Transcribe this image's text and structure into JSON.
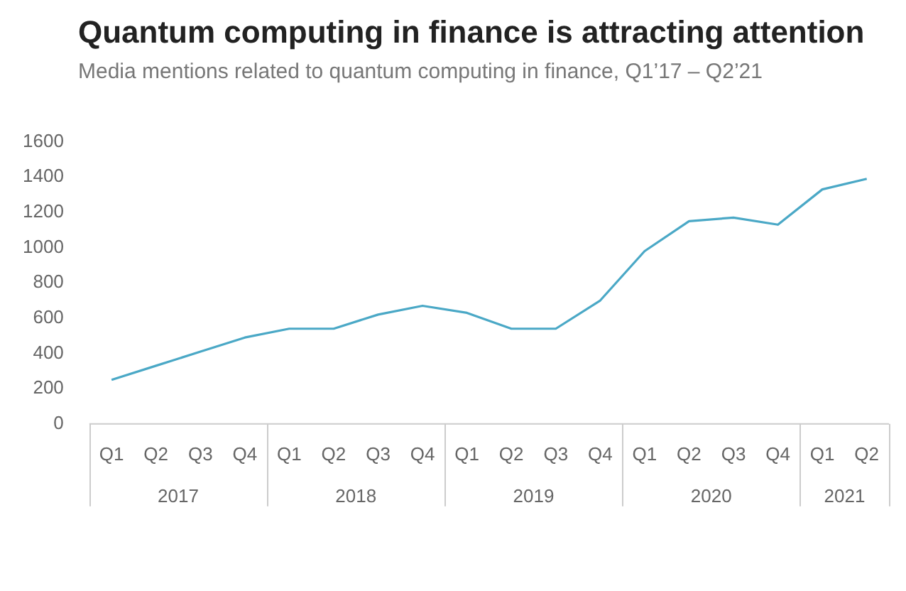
{
  "chart_data": {
    "type": "line",
    "title": "Quantum computing in finance is attracting attention",
    "subtitle": "Media mentions related to quantum computing in finance, Q1’17 – Q2’21",
    "categories": [
      "Q1",
      "Q2",
      "Q3",
      "Q4",
      "Q1",
      "Q2",
      "Q3",
      "Q4",
      "Q1",
      "Q2",
      "Q3",
      "Q4",
      "Q1",
      "Q2",
      "Q3",
      "Q4",
      "Q1",
      "Q2"
    ],
    "series": [
      {
        "color": "#4aa8c6",
        "values": [
          250,
          330,
          410,
          490,
          540,
          540,
          620,
          670,
          630,
          540,
          540,
          700,
          980,
          1150,
          1170,
          1130,
          1330,
          1390
        ]
      }
    ],
    "annotations": [
      "2017",
      "2018",
      "2019",
      "2020",
      "2021"
    ],
    "ylim": [
      0,
      1600
    ],
    "yticks": [
      0,
      200,
      400,
      600,
      800,
      1000,
      1200,
      1400,
      1600
    ],
    "grid": false,
    "legend": false,
    "marker": "none",
    "line_style": "solid"
  }
}
